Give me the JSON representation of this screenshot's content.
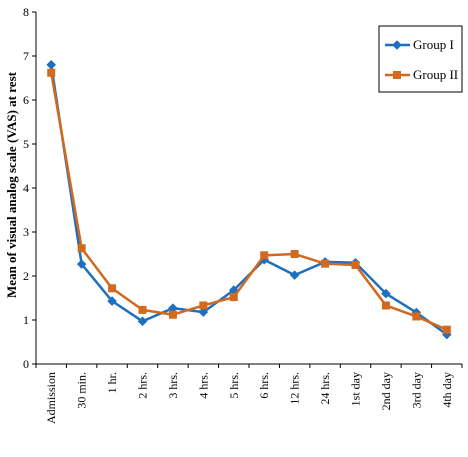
{
  "chart_data": {
    "type": "line",
    "ylabel": "Mean of visual analog scale (VAS) at rest",
    "xlabel": "",
    "ylim": [
      0,
      8
    ],
    "yticks": [
      "0",
      "1",
      "2",
      "3",
      "4",
      "5",
      "6",
      "7",
      "8"
    ],
    "categories": [
      "Admission",
      "30 min.",
      "1 hr.",
      "2 hrs.",
      "3 hrs.",
      "4 hrs.",
      "5 hrs.",
      "6 hrs.",
      "12 hrs.",
      "24 hrs.",
      "1st day",
      "2nd day",
      "3rd day",
      "4th day"
    ],
    "series": [
      {
        "name": "Group I",
        "color": "#1f6fbf",
        "marker": "diamond",
        "values": [
          6.8,
          2.27,
          1.43,
          0.97,
          1.27,
          1.18,
          1.68,
          2.37,
          2.02,
          2.32,
          2.3,
          1.6,
          1.17,
          0.67
        ]
      },
      {
        "name": "Group II",
        "color": "#d2691e",
        "marker": "square",
        "values": [
          6.62,
          2.63,
          1.72,
          1.23,
          1.12,
          1.33,
          1.52,
          2.47,
          2.5,
          2.28,
          2.25,
          1.33,
          1.08,
          0.78
        ]
      }
    ],
    "legend": "top-right",
    "grid": false
  }
}
